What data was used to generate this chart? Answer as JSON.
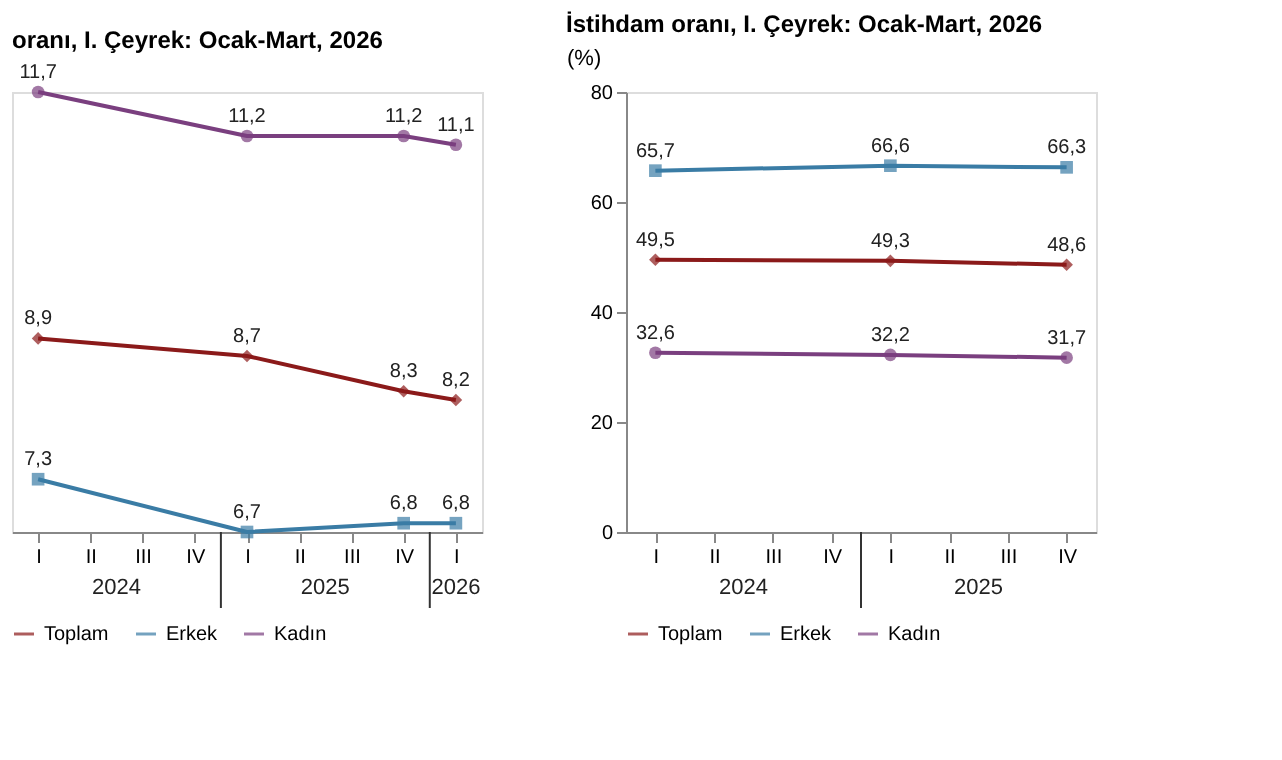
{
  "chart_data": [
    {
      "type": "line",
      "title": "oranı, I. Çeyrek: Ocak-Mart, 2026",
      "categories": [
        "I",
        "II",
        "III",
        "IV",
        "I",
        "II",
        "III",
        "IV",
        "I"
      ],
      "annotations": [
        "2024",
        "2025",
        "2026"
      ],
      "tick_labels": "x",
      "grid": false,
      "legend": "bottom",
      "series": [
        {
          "name": "Toplam",
          "color": "#8b1a1a",
          "marker": "diamond",
          "values": [
            8.9,
            null,
            null,
            null,
            8.7,
            null,
            null,
            8.3,
            8.2
          ],
          "value_labels": [
            "8,9",
            null,
            null,
            null,
            "8,7",
            null,
            null,
            "8,3",
            "8,2"
          ]
        },
        {
          "name": "Erkek",
          "color": "#3a7ca5",
          "marker": "square",
          "values": [
            7.3,
            null,
            null,
            null,
            6.7,
            null,
            null,
            6.8,
            6.8
          ],
          "value_labels": [
            "7,3",
            null,
            null,
            null,
            "6,7",
            null,
            null,
            "6,8",
            "6,8"
          ]
        },
        {
          "name": "Kadın",
          "color": "#7a3f7f",
          "marker": "circle",
          "values": [
            11.7,
            null,
            null,
            null,
            11.2,
            null,
            null,
            11.2,
            11.1
          ],
          "value_labels": [
            "11,7",
            null,
            null,
            null,
            "11,2",
            null,
            null,
            "11,2",
            "11,1"
          ]
        }
      ]
    },
    {
      "type": "line",
      "title": "İstihdam oranı, I. Çeyrek: Ocak-Mart, 2026",
      "ylabel": "(%)",
      "categories": [
        "I",
        "II",
        "III",
        "IV",
        "I",
        "II",
        "III",
        "IV"
      ],
      "annotations": [
        "2024",
        "2025"
      ],
      "ylim": [
        0,
        80
      ],
      "yticks": [
        0,
        20,
        40,
        60,
        80
      ],
      "grid": false,
      "legend": "bottom",
      "series": [
        {
          "name": "Toplam",
          "color": "#8b1a1a",
          "marker": "diamond",
          "values": [
            49.5,
            null,
            null,
            null,
            49.3,
            null,
            null,
            48.6
          ],
          "value_labels": [
            "49,5",
            null,
            null,
            null,
            "49,3",
            null,
            null,
            "48,6"
          ]
        },
        {
          "name": "Erkek",
          "color": "#3a7ca5",
          "marker": "square",
          "values": [
            65.7,
            null,
            null,
            null,
            66.6,
            null,
            null,
            66.3
          ],
          "value_labels": [
            "65,7",
            null,
            null,
            null,
            "66,6",
            null,
            null,
            "66,3"
          ]
        },
        {
          "name": "Kadın",
          "color": "#7a3f7f",
          "marker": "circle",
          "values": [
            32.6,
            null,
            null,
            null,
            32.2,
            null,
            null,
            31.7
          ],
          "value_labels": [
            "32,6",
            null,
            null,
            null,
            "32,2",
            null,
            null,
            "31,7"
          ]
        }
      ]
    }
  ]
}
